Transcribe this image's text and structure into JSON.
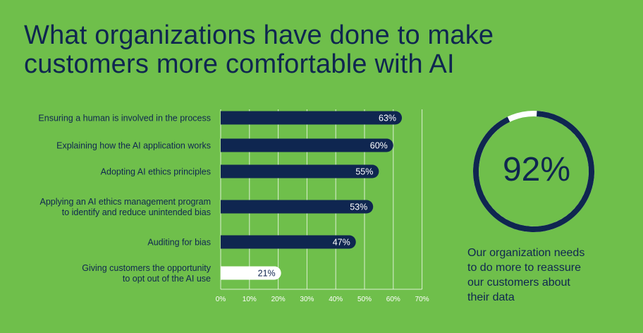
{
  "title": {
    "line1": "What organizations have done to make",
    "line2": "customers more comfortable with AI"
  },
  "chart_data": {
    "type": "bar",
    "orientation": "horizontal",
    "categories": [
      [
        "Ensuring a human is involved in the process"
      ],
      [
        "Explaining how the AI application works"
      ],
      [
        "Adopting AI ethics principles"
      ],
      [
        "Applying an AI ethics management program",
        "to identify and reduce unintended bias"
      ],
      [
        "Auditing for bias"
      ],
      [
        "Giving customers the opportunity",
        "to opt out of the AI use"
      ]
    ],
    "values": [
      63,
      60,
      55,
      53,
      47,
      21
    ],
    "value_labels": [
      "63%",
      "60%",
      "55%",
      "53%",
      "47%",
      "21%"
    ],
    "highlight": [
      false,
      false,
      false,
      false,
      false,
      true
    ],
    "xlim": [
      0,
      70
    ],
    "ticks": [
      0,
      10,
      20,
      30,
      40,
      50,
      60,
      70
    ],
    "tick_labels": [
      "0%",
      "10%",
      "20%",
      "30%",
      "40%",
      "50%",
      "60%",
      "70%"
    ],
    "grid": true,
    "title": "What organizations have done to make customers more comfortable with AI"
  },
  "donut": {
    "value": 92,
    "label": "92%",
    "caption": [
      "Our organization needs",
      "to do more to reassure",
      "our customers about",
      "their data"
    ]
  },
  "colors": {
    "background": "#6fbf4b",
    "bar": "#0f2650",
    "highlight_bar": "#ffffff",
    "grid": "#ffffff",
    "text": "#0f2650",
    "ring_track": "#ffffff",
    "ring_fill": "#0f2650"
  }
}
